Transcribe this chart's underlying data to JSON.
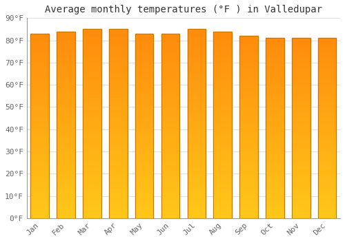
{
  "title": "Average monthly temperatures (°F ) in Valledupar",
  "months": [
    "Jan",
    "Feb",
    "Mar",
    "Apr",
    "May",
    "Jun",
    "Jul",
    "Aug",
    "Sep",
    "Oct",
    "Nov",
    "Dec"
  ],
  "values": [
    83,
    84,
    85,
    85,
    83,
    83,
    85,
    84,
    82,
    81,
    81,
    81
  ],
  "bar_color": "#FFC02A",
  "bar_edge_color": "#C87800",
  "background_color": "#ffffff",
  "plot_bg_color": "#ffffff",
  "grid_color": "#e0e0e0",
  "ylim": [
    0,
    90
  ],
  "yticks": [
    0,
    10,
    20,
    30,
    40,
    50,
    60,
    70,
    80,
    90
  ],
  "ytick_labels": [
    "0°F",
    "10°F",
    "20°F",
    "30°F",
    "40°F",
    "50°F",
    "60°F",
    "70°F",
    "80°F",
    "90°F"
  ],
  "title_fontsize": 10,
  "tick_fontsize": 8,
  "font_family": "monospace",
  "bar_width": 0.7
}
